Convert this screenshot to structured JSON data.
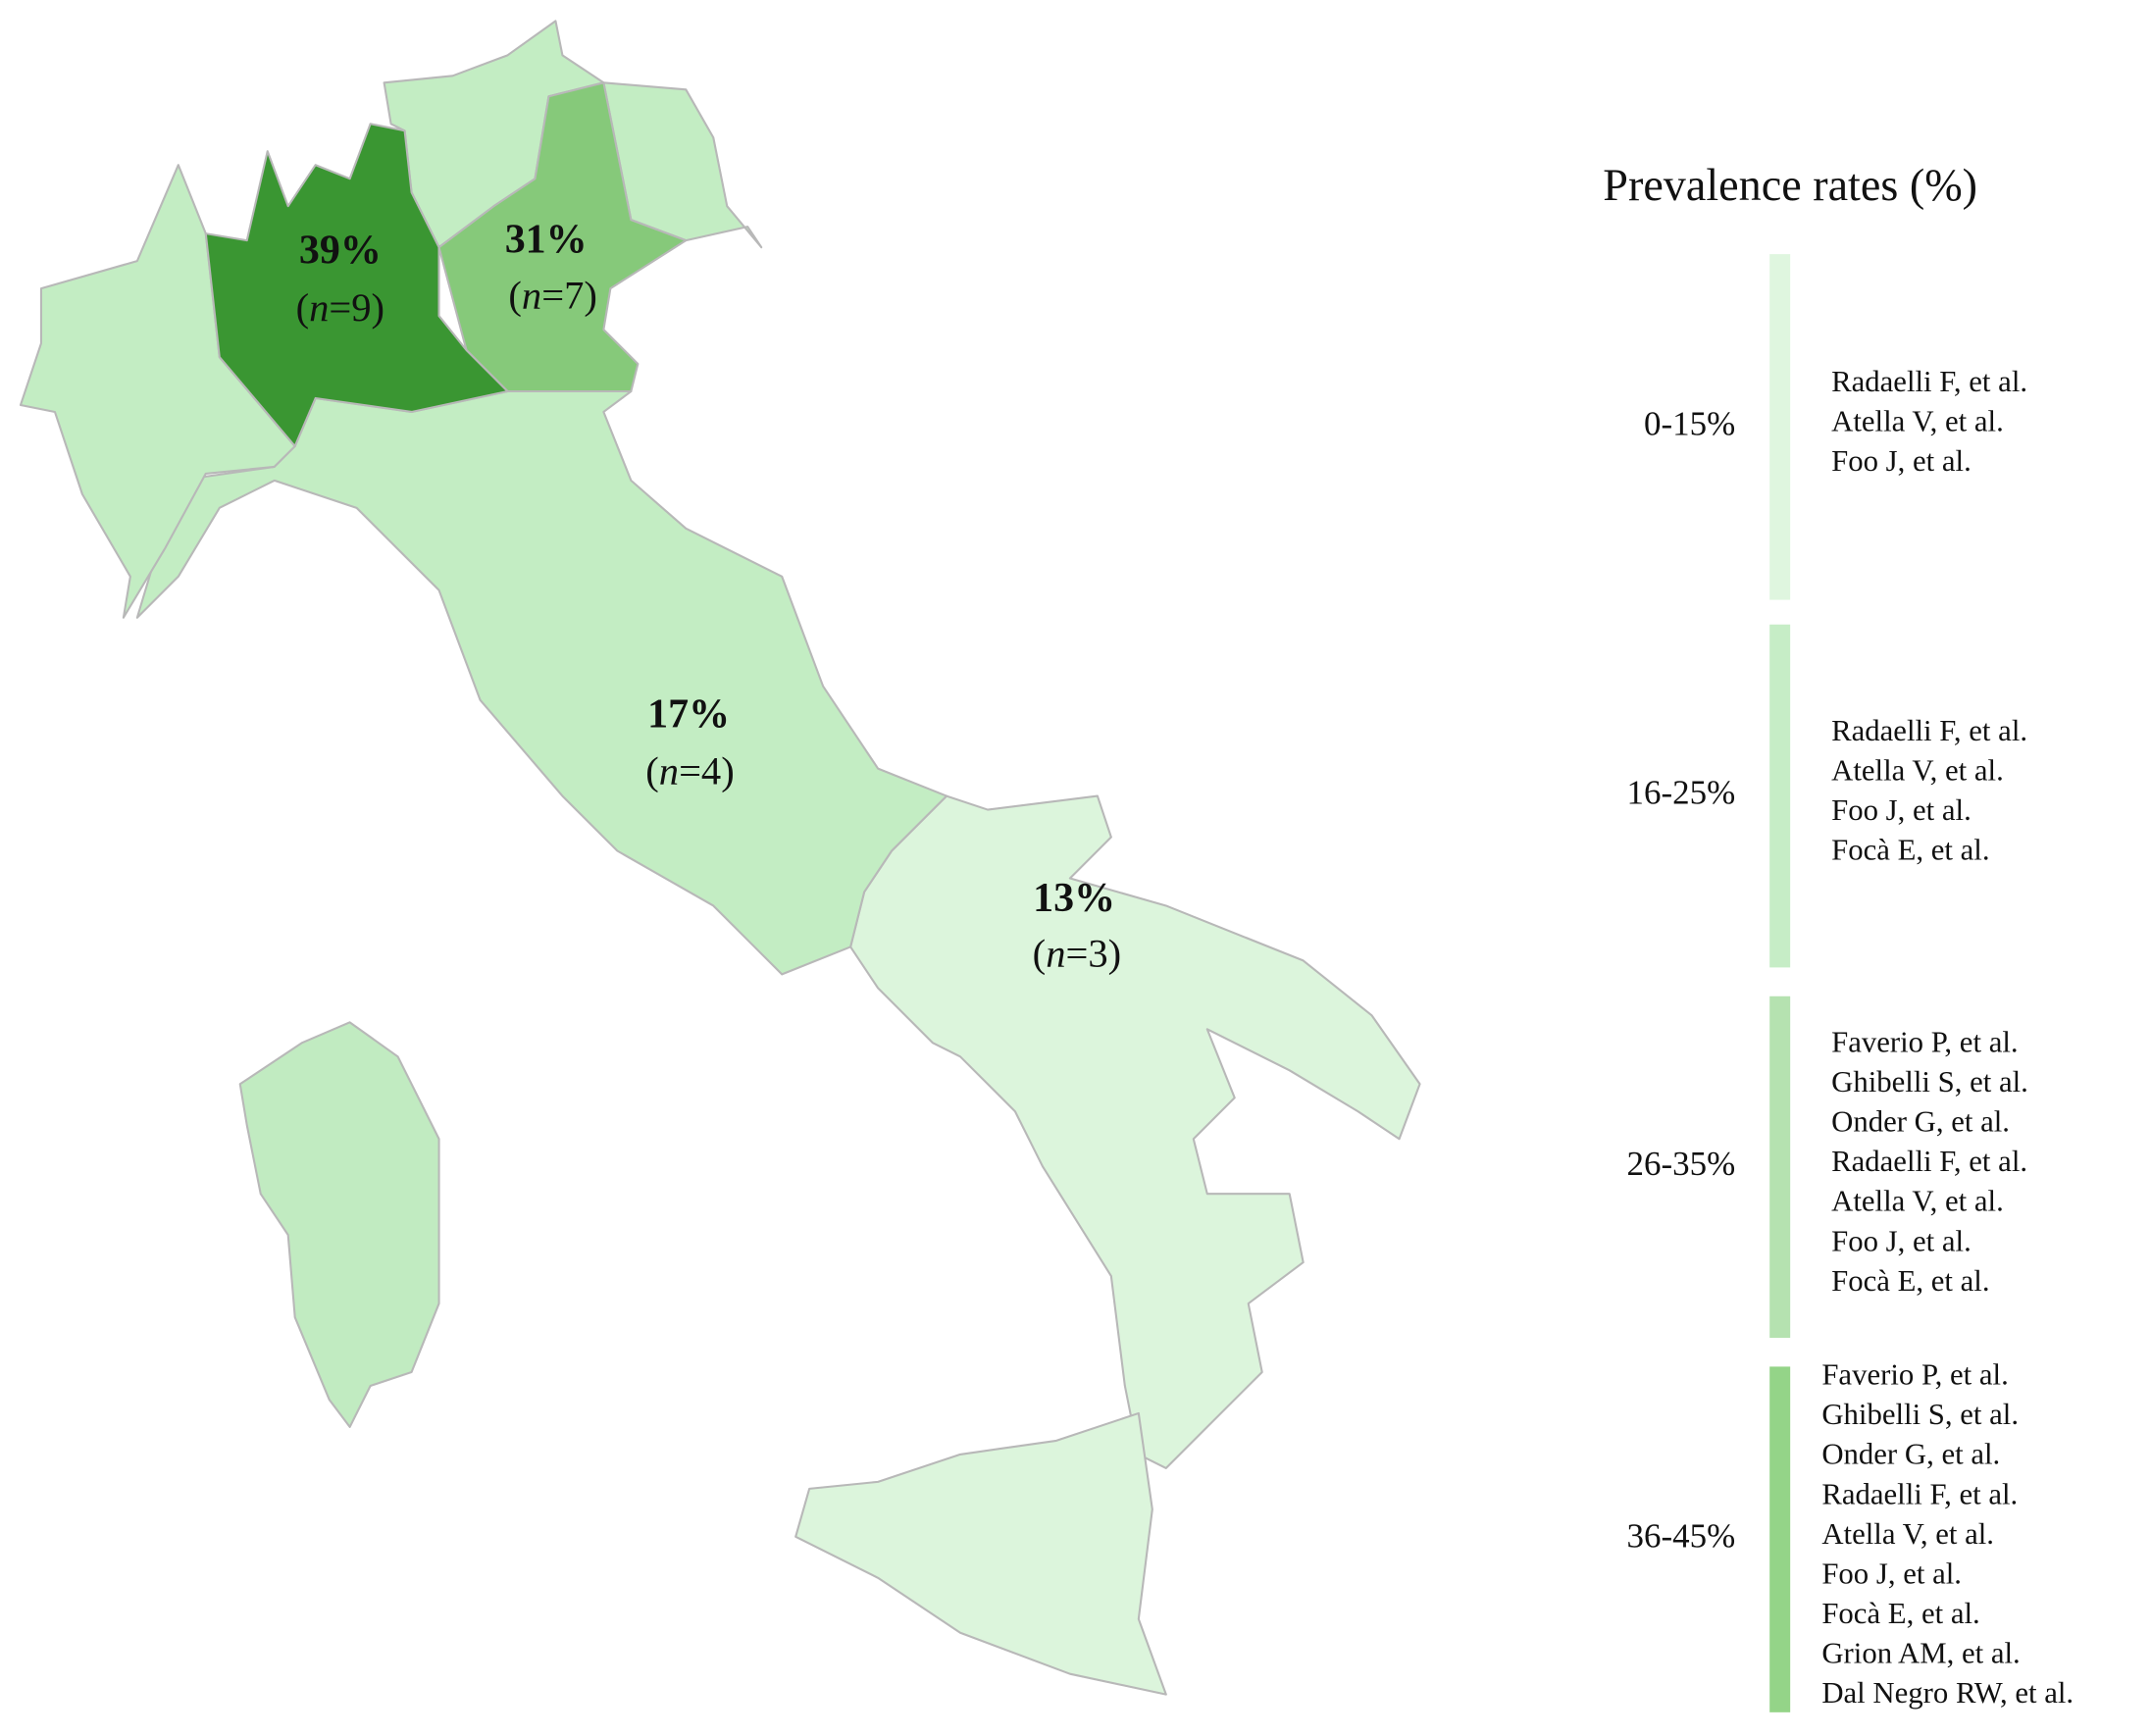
{
  "map": {
    "labels": [
      {
        "percent": "39%",
        "sample": "(n=9)"
      },
      {
        "percent": "31%",
        "sample": "(n=7)"
      },
      {
        "percent": "17%",
        "sample": "(n=4)"
      },
      {
        "percent": "13%",
        "sample": "(n=3)"
      }
    ]
  },
  "legend": {
    "title": "Prevalence rates (%)",
    "groups": [
      {
        "range": "0-15%",
        "color": "#dff6df",
        "references": [
          "Radaelli F, et al.",
          "Atella V, et al.",
          "Foo J, et al."
        ]
      },
      {
        "range": "16-25%",
        "color": "#c6edc6",
        "references": [
          "Radaelli F, et al.",
          "Atella V, et al.",
          "Foo J, et al.",
          "Focà E, et al."
        ]
      },
      {
        "range": "26-35%",
        "color": "#b5e2b0",
        "references": [
          "Faverio P, et al.",
          "Ghibelli S, et al.",
          "Onder G, et al.",
          "Radaelli F, et al.",
          "Atella V, et al.",
          "Foo J, et al.",
          "Focà E, et al."
        ]
      },
      {
        "range": "36-45%",
        "color": "#94d488",
        "references": [
          "Faverio P, et al.",
          "Ghibelli S, et al.",
          "Onder G, et al.",
          "Radaelli F, et al.",
          "Atella V, et al.",
          "Foo J, et al.",
          "Focà E, et al.",
          "Grion AM, et al.",
          "Dal Negro RW, et al."
        ]
      }
    ]
  }
}
